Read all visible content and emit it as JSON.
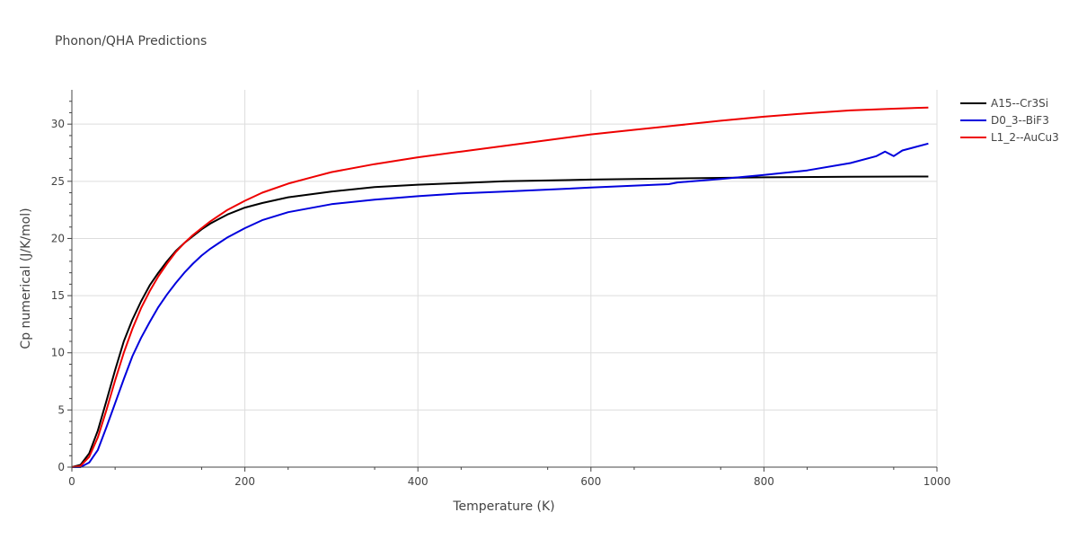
{
  "chart_data": {
    "type": "line",
    "title": "Phonon/QHA Predictions",
    "xlabel": "Temperature (K)",
    "ylabel": "Cp numerical (J/K/mol)",
    "xlim": [
      0,
      1000
    ],
    "ylim": [
      0,
      33
    ],
    "xticks": [
      0,
      200,
      400,
      600,
      800,
      1000
    ],
    "yticks": [
      0,
      5,
      10,
      15,
      20,
      25,
      30
    ],
    "grid": true,
    "legend_position": "top-right",
    "series": [
      {
        "name": "A15--Cr3Si",
        "color": "#000000",
        "x": [
          0,
          10,
          20,
          30,
          40,
          50,
          60,
          70,
          80,
          90,
          100,
          110,
          120,
          130,
          140,
          150,
          160,
          170,
          180,
          200,
          220,
          250,
          300,
          350,
          400,
          450,
          500,
          600,
          700,
          800,
          900,
          990
        ],
        "y": [
          0,
          0.2,
          1.2,
          3.2,
          5.8,
          8.5,
          11.0,
          12.9,
          14.5,
          15.9,
          17.0,
          18.0,
          18.9,
          19.6,
          20.2,
          20.8,
          21.3,
          21.7,
          22.1,
          22.7,
          23.1,
          23.6,
          24.1,
          24.5,
          24.7,
          24.85,
          25.0,
          25.15,
          25.25,
          25.35,
          25.4,
          25.42
        ]
      },
      {
        "name": "D0_3--BiF3",
        "color": "#0000dd",
        "x": [
          0,
          10,
          20,
          30,
          40,
          50,
          60,
          70,
          80,
          90,
          100,
          110,
          120,
          130,
          140,
          150,
          160,
          170,
          180,
          200,
          220,
          250,
          300,
          350,
          400,
          450,
          500,
          600,
          690,
          700,
          750,
          800,
          850,
          900,
          930,
          940,
          950,
          960,
          990
        ],
        "y": [
          0,
          0,
          0.4,
          1.5,
          3.5,
          5.6,
          7.7,
          9.7,
          11.3,
          12.7,
          14.0,
          15.1,
          16.1,
          17.0,
          17.8,
          18.5,
          19.1,
          19.6,
          20.1,
          20.9,
          21.6,
          22.3,
          23.0,
          23.4,
          23.7,
          23.95,
          24.1,
          24.45,
          24.75,
          24.9,
          25.2,
          25.55,
          25.95,
          26.6,
          27.2,
          27.6,
          27.2,
          27.7,
          28.3
        ]
      },
      {
        "name": "L1_2--AuCu3",
        "color": "#ee0000",
        "x": [
          0,
          10,
          20,
          30,
          40,
          50,
          60,
          70,
          80,
          90,
          100,
          110,
          120,
          130,
          140,
          150,
          160,
          170,
          180,
          200,
          220,
          250,
          280,
          300,
          350,
          400,
          450,
          500,
          550,
          600,
          650,
          700,
          750,
          800,
          850,
          900,
          950,
          990
        ],
        "y": [
          0,
          0.1,
          0.9,
          2.6,
          5.0,
          7.6,
          10.0,
          12.1,
          13.9,
          15.4,
          16.7,
          17.8,
          18.8,
          19.6,
          20.3,
          20.9,
          21.5,
          22.0,
          22.5,
          23.3,
          24.0,
          24.8,
          25.4,
          25.8,
          26.5,
          27.1,
          27.6,
          28.1,
          28.6,
          29.1,
          29.5,
          29.9,
          30.3,
          30.65,
          30.95,
          31.2,
          31.35,
          31.45
        ]
      }
    ]
  }
}
